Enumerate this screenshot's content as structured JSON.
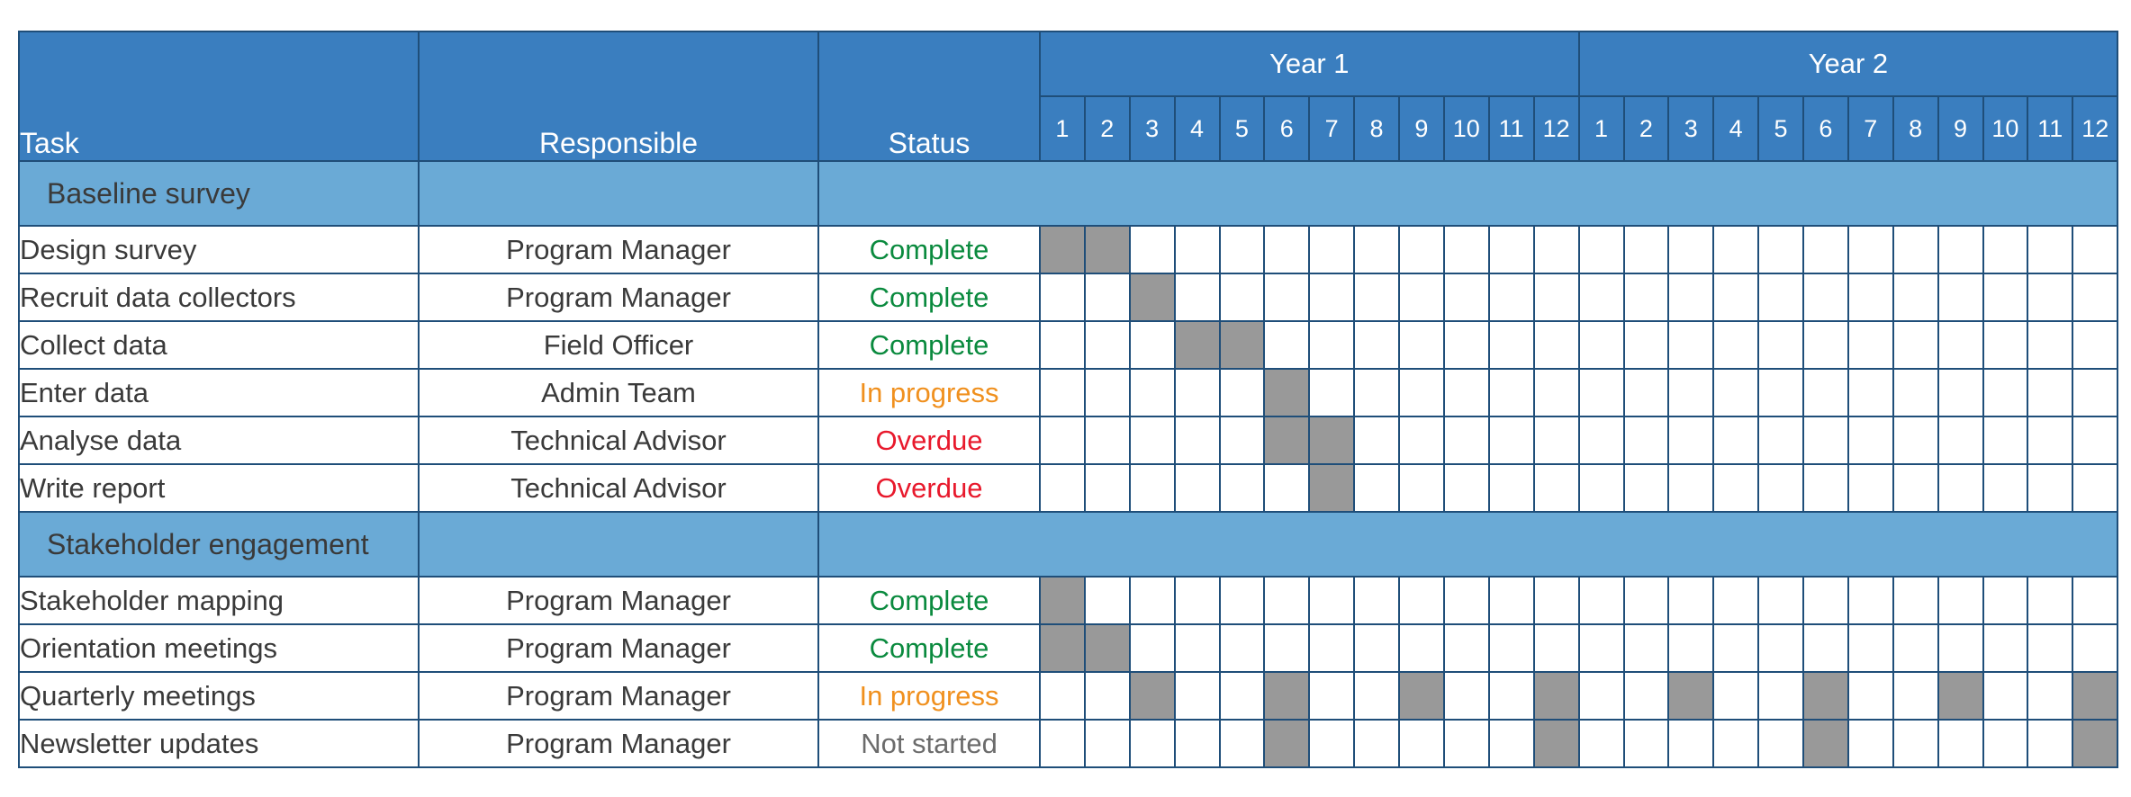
{
  "headers": {
    "task": "Task",
    "responsible": "Responsible",
    "status": "Status",
    "years": [
      "Year 1",
      "Year 2"
    ],
    "months": [
      "1",
      "2",
      "3",
      "4",
      "5",
      "6",
      "7",
      "8",
      "9",
      "10",
      "11",
      "12"
    ]
  },
  "status_colors": {
    "Complete": "#0a8a3e",
    "In progress": "#f0901e",
    "Overdue": "#e8192c",
    "Not started": "#6b6b6b"
  },
  "groups": [
    {
      "name": "Baseline survey",
      "tasks": [
        {
          "name": "Design survey",
          "responsible": "Program Manager",
          "status": "Complete",
          "months": [
            1,
            2
          ]
        },
        {
          "name": "Recruit data collectors",
          "responsible": "Program Manager",
          "status": "Complete",
          "months": [
            3
          ]
        },
        {
          "name": "Collect data",
          "responsible": "Field Officer",
          "status": "Complete",
          "months": [
            4,
            5
          ]
        },
        {
          "name": "Enter data",
          "responsible": "Admin Team",
          "status": "In progress",
          "months": [
            6
          ]
        },
        {
          "name": "Analyse data",
          "responsible": "Technical Advisor",
          "status": "Overdue",
          "months": [
            6,
            7
          ]
        },
        {
          "name": "Write report",
          "responsible": "Technical Advisor",
          "status": "Overdue",
          "months": [
            7
          ]
        }
      ]
    },
    {
      "name": "Stakeholder engagement",
      "tasks": [
        {
          "name": "Stakeholder mapping",
          "responsible": "Program Manager",
          "status": "Complete",
          "months": [
            1
          ]
        },
        {
          "name": "Orientation meetings",
          "responsible": "Program Manager",
          "status": "Complete",
          "months": [
            1,
            2
          ]
        },
        {
          "name": "Quarterly meetings",
          "responsible": "Program Manager",
          "status": "In progress",
          "months": [
            3,
            6,
            9,
            12,
            15,
            18,
            21,
            24
          ]
        },
        {
          "name": "Newsletter updates",
          "responsible": "Program Manager",
          "status": "Not started",
          "months": [
            6,
            12,
            18,
            24
          ]
        }
      ]
    }
  ]
}
